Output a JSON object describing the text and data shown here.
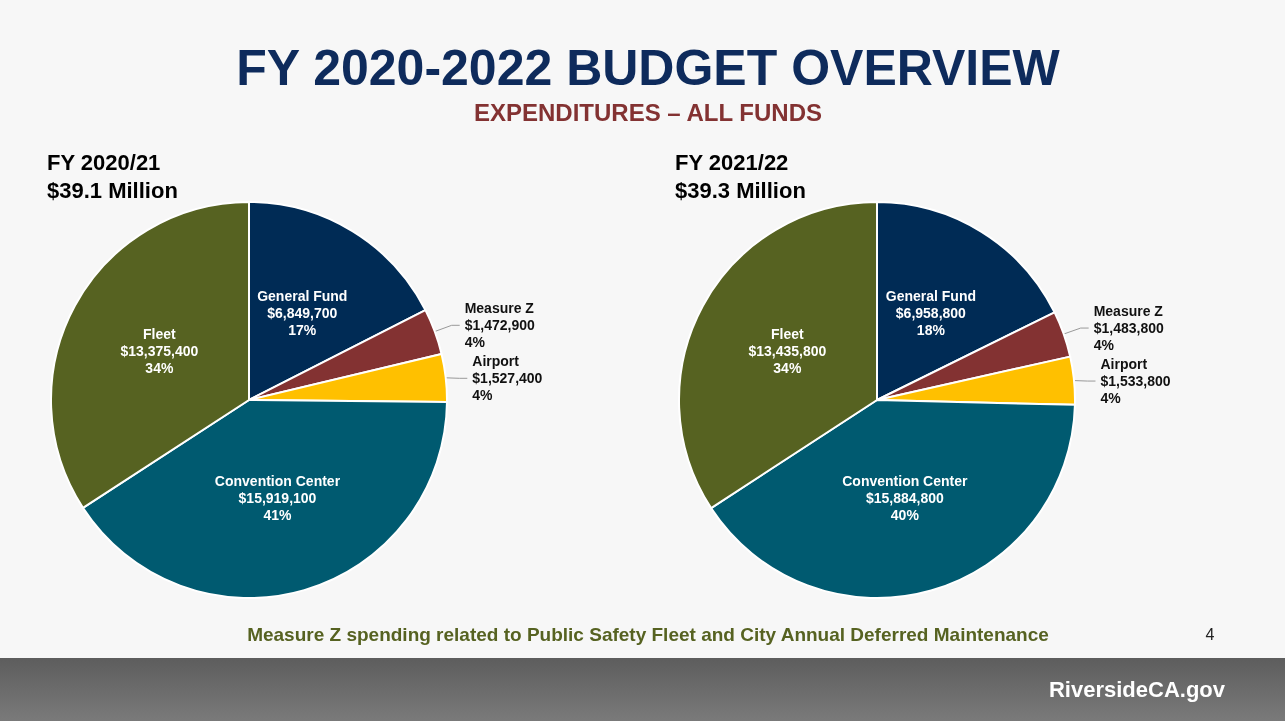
{
  "chart_data": [
    {
      "type": "other",
      "title": "FY 2020-2022 BUDGET OVERVIEW",
      "subtitle": "EXPENDITURES – ALL FUNDS",
      "annotations": [
        "Measure Z spending related to Public Safety Fleet and City Annual Deferred Maintenance",
        "4",
        "RiversideCA.gov"
      ]
    },
    {
      "type": "pie",
      "title": "FY 2020/21",
      "subtitle": "$39.1 Million",
      "categories": [
        "General Fund",
        "Measure Z",
        "Airport",
        "Convention Center",
        "Fleet"
      ],
      "values": [
        6849700,
        1472900,
        1527400,
        15919100,
        13375400
      ],
      "colors": [
        "#002b55",
        "#833232",
        "#ffc000",
        "#005a70",
        "#566221"
      ],
      "value_labels": [
        "$6,849,700\n17%",
        "$1,472,900\n4%",
        "$1,527,400\n4%",
        "$15,919,100\n41%",
        "$13,375,400\n34%"
      ]
    },
    {
      "type": "pie",
      "title": "FY 2021/22",
      "subtitle": "$39.3 Million",
      "categories": [
        "General Fund",
        "Measure Z",
        "Airport",
        "Convention Center",
        "Fleet"
      ],
      "values": [
        6958800,
        1483800,
        1533800,
        15884800,
        13435800
      ],
      "colors": [
        "#002b55",
        "#833232",
        "#ffc000",
        "#005a70",
        "#566221"
      ],
      "value_labels": [
        "$6,958,800\n18%",
        "$1,483,800\n4%",
        "$1,533,800\n4%",
        "$15,884,800\n40%",
        "$13,435,800\n34%"
      ]
    }
  ]
}
